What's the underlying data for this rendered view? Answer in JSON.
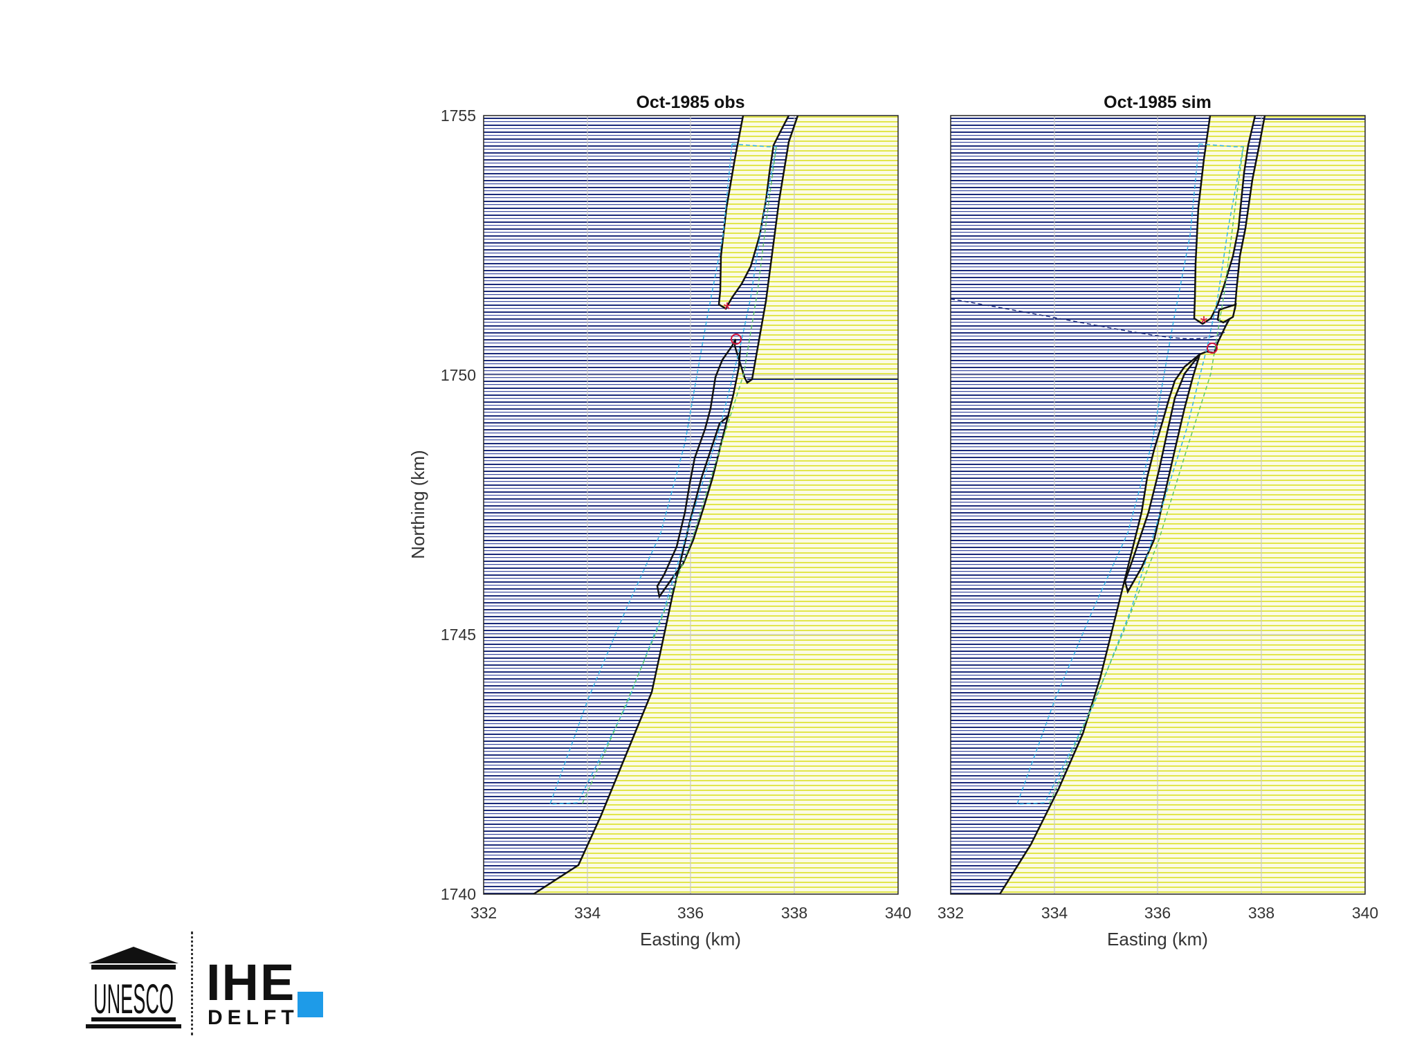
{
  "colors": {
    "water": "#1b2a7a",
    "land": "#e8ec4a",
    "coastline": "#111111",
    "grid": "#c8c8c8",
    "cyan_dashed": "#33b4e6",
    "green_dashed": "#5ec46a",
    "marker": "#d4143c",
    "ihe_blue": "#1e9be8"
  },
  "chart_data": [
    {
      "type": "map",
      "title": "Oct-1985 obs",
      "xlabel": "Easting (km)",
      "ylabel": "Northing (km)",
      "xlim": [
        332,
        340
      ],
      "ylim": [
        1740,
        1755
      ],
      "xticks": [
        "332",
        "334",
        "336",
        "338",
        "340"
      ],
      "yticks": [
        "1740",
        "1745",
        "1750",
        "1755"
      ],
      "grid": true,
      "star_marker": [
        336.7,
        1751.3
      ],
      "circle_marker": [
        336.9,
        1750.7
      ]
    },
    {
      "type": "map",
      "title": "Oct-1985 sim",
      "xlabel": "Easting (km)",
      "ylabel": "",
      "xlim": [
        332,
        340
      ],
      "ylim": [
        1740,
        1755
      ],
      "xticks": [
        "332",
        "334",
        "336",
        "338",
        "340"
      ],
      "yticks": [],
      "grid": true,
      "star_marker": [
        336.9,
        1751.0
      ],
      "circle_marker": [
        337.0,
        1750.5
      ]
    }
  ],
  "logo": {
    "unesco_text": "UNESCO",
    "ihe_text": "IHE",
    "delft_text": "DELFT"
  }
}
